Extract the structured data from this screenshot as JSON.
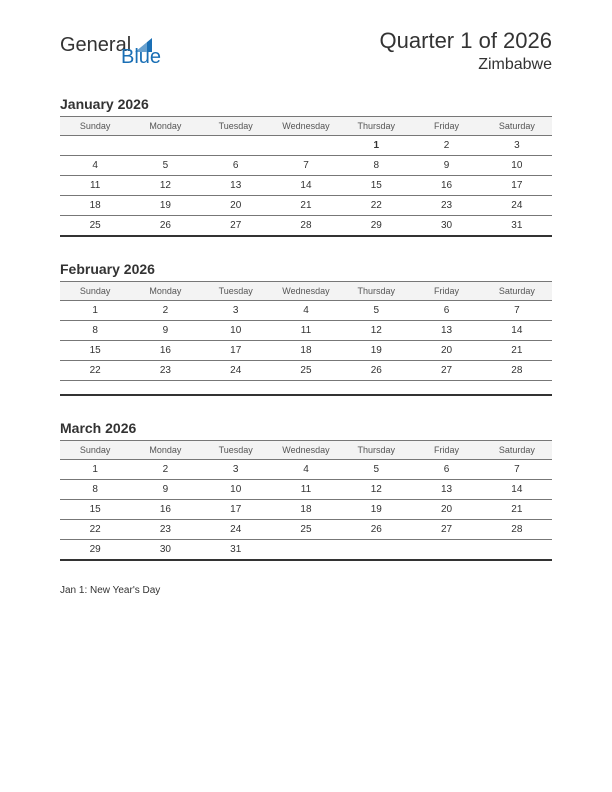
{
  "logo": {
    "part1": "General",
    "part2": "Blue"
  },
  "header": {
    "quarter": "Quarter 1 of 2026",
    "country": "Zimbabwe"
  },
  "colors": {
    "holiday_text": "#cc0000",
    "header_bg": "#f3f3f3",
    "row_border": "#777777",
    "bottom_border": "#333333",
    "logo_accent": "#1a6fb5",
    "text": "#333333",
    "background": "#ffffff"
  },
  "day_headers": [
    "Sunday",
    "Monday",
    "Tuesday",
    "Wednesday",
    "Thursday",
    "Friday",
    "Saturday"
  ],
  "months": [
    {
      "title": "January 2026",
      "weeks": [
        [
          "",
          "",
          "",
          "",
          {
            "d": "1",
            "holiday": true
          },
          "2",
          "3"
        ],
        [
          "4",
          "5",
          "6",
          "7",
          "8",
          "9",
          "10"
        ],
        [
          "11",
          "12",
          "13",
          "14",
          "15",
          "16",
          "17"
        ],
        [
          "18",
          "19",
          "20",
          "21",
          "22",
          "23",
          "24"
        ],
        [
          "25",
          "26",
          "27",
          "28",
          "29",
          "30",
          "31"
        ]
      ],
      "trailing_spacer": false
    },
    {
      "title": "February 2026",
      "weeks": [
        [
          "1",
          "2",
          "3",
          "4",
          "5",
          "6",
          "7"
        ],
        [
          "8",
          "9",
          "10",
          "11",
          "12",
          "13",
          "14"
        ],
        [
          "15",
          "16",
          "17",
          "18",
          "19",
          "20",
          "21"
        ],
        [
          "22",
          "23",
          "24",
          "25",
          "26",
          "27",
          "28"
        ]
      ],
      "trailing_spacer": true
    },
    {
      "title": "March 2026",
      "weeks": [
        [
          "1",
          "2",
          "3",
          "4",
          "5",
          "6",
          "7"
        ],
        [
          "8",
          "9",
          "10",
          "11",
          "12",
          "13",
          "14"
        ],
        [
          "15",
          "16",
          "17",
          "18",
          "19",
          "20",
          "21"
        ],
        [
          "22",
          "23",
          "24",
          "25",
          "26",
          "27",
          "28"
        ],
        [
          "29",
          "30",
          "31",
          "",
          "",
          "",
          ""
        ]
      ],
      "trailing_spacer": false
    }
  ],
  "holidays_text": "Jan 1: New Year's Day"
}
